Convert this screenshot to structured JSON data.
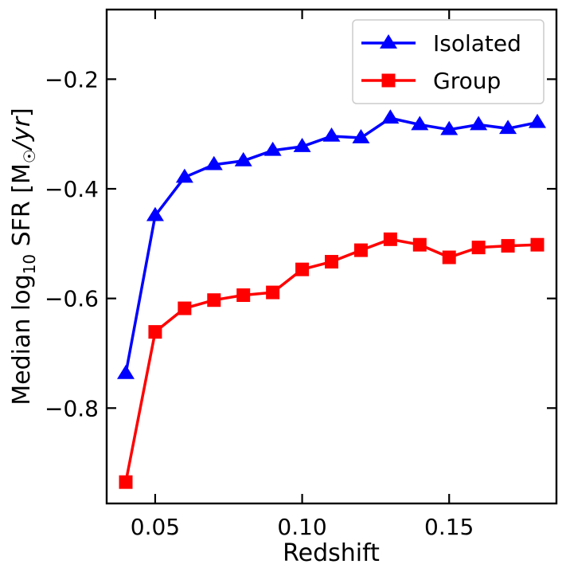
{
  "chart_data": {
    "type": "line",
    "title": "",
    "xlabel": "Redshift",
    "ylabel": {
      "prefix": "Median log",
      "sub": "10",
      "mid": " SFR [M",
      "sun": "☉",
      "unit": "/yr",
      "close": "]"
    },
    "xlim": [
      0.0335,
      0.1865
    ],
    "ylim": [
      -0.974,
      -0.073
    ],
    "xticks": [
      {
        "value": 0.05,
        "label": "0.05"
      },
      {
        "value": 0.1,
        "label": "0.10"
      },
      {
        "value": 0.15,
        "label": "0.15"
      }
    ],
    "yticks": [
      {
        "value": -0.2,
        "label": "−0.2"
      },
      {
        "value": -0.4,
        "label": "−0.4"
      },
      {
        "value": -0.6,
        "label": "−0.6"
      },
      {
        "value": -0.8,
        "label": "−0.8"
      }
    ],
    "x": [
      0.04,
      0.05,
      0.06,
      0.07,
      0.08,
      0.09,
      0.1,
      0.11,
      0.12,
      0.13,
      0.14,
      0.15,
      0.16,
      0.17,
      0.18
    ],
    "series": [
      {
        "name": "Isolated",
        "color": "#0000ff",
        "marker": "triangle",
        "values": [
          -0.737,
          -0.449,
          -0.379,
          -0.356,
          -0.349,
          -0.33,
          -0.323,
          -0.304,
          -0.307,
          -0.271,
          -0.283,
          -0.292,
          -0.283,
          -0.29,
          -0.279
        ]
      },
      {
        "name": "Group",
        "color": "#ff0000",
        "marker": "square",
        "values": [
          -0.935,
          -0.661,
          -0.618,
          -0.603,
          -0.594,
          -0.589,
          -0.547,
          -0.533,
          -0.512,
          -0.492,
          -0.502,
          -0.525,
          -0.507,
          -0.504,
          -0.502
        ]
      }
    ],
    "legend_position": "top-right",
    "grid": false
  }
}
